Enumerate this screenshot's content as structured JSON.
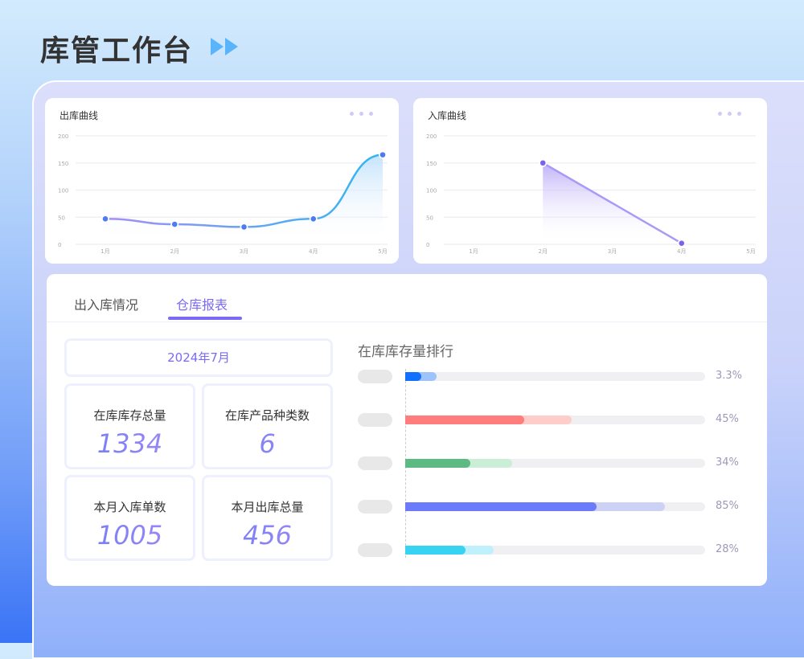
{
  "header": {
    "title": "库管工作台",
    "icon": "double-play-arrow-icon"
  },
  "outbound_chart": {
    "title": "出库曲线",
    "menu_icon": "more-dots-icon"
  },
  "inbound_chart": {
    "title": "入库曲线",
    "menu_icon": "more-dots-icon"
  },
  "chart_data": [
    {
      "type": "line",
      "title": "出库曲线",
      "categories": [
        "1月",
        "2月",
        "3月",
        "4月",
        "5月"
      ],
      "values": [
        47,
        37,
        32,
        47,
        165
      ],
      "yticks": [
        "0",
        "50",
        "100",
        "150",
        "200"
      ],
      "ylim": [
        0,
        200
      ],
      "grid": true,
      "smooth": true,
      "colors": [
        "#a48ef7",
        "#2fb8f0"
      ]
    },
    {
      "type": "area",
      "title": "入库曲线",
      "categories": [
        "1月",
        "2月",
        "3月",
        "4月",
        "5月"
      ],
      "points": [
        {
          "x": "2月",
          "y": 150
        },
        {
          "x": "4月",
          "y": 2
        }
      ],
      "yticks": [
        "0",
        "50",
        "100",
        "150",
        "200"
      ],
      "ylim": [
        0,
        200
      ],
      "grid": true,
      "colors": [
        "#a89af6"
      ]
    }
  ],
  "tabs": [
    {
      "label": "出入库情况",
      "active": false
    },
    {
      "label": "仓库报表",
      "active": true
    }
  ],
  "report": {
    "date": "2024年7月",
    "stats": [
      {
        "label": "在库库存总量",
        "value": "1334"
      },
      {
        "label": "在库产品种类数",
        "value": "6"
      },
      {
        "label": "本月入库单数",
        "value": "1005"
      },
      {
        "label": "本月出库总量",
        "value": "456"
      }
    ]
  },
  "ranking": {
    "title": "在库库存量排行",
    "rows": [
      {
        "pct": "3.3%",
        "fill": 0.054,
        "secondary": 0.105,
        "color": "#1170fd",
        "light": "#9cc3fb"
      },
      {
        "pct": "45%",
        "fill": 0.397,
        "secondary": 0.555,
        "color": "#ff7d7d",
        "light": "#ffcdc9"
      },
      {
        "pct": "34%",
        "fill": 0.217,
        "secondary": 0.357,
        "color": "#5cba82",
        "light": "#cbeed6"
      },
      {
        "pct": "85%",
        "fill": 0.638,
        "secondary": 0.866,
        "color": "#6b7bfb",
        "light": "#cdd1f4"
      },
      {
        "pct": "28%",
        "fill": 0.201,
        "secondary": 0.295,
        "color": "#38d2f3",
        "light": "#c0f0fb"
      }
    ]
  }
}
